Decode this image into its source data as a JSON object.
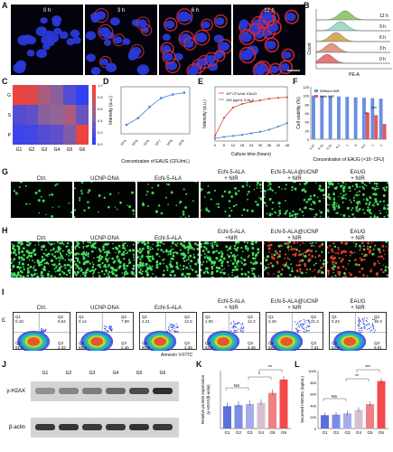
{
  "panels": {
    "A": "A",
    "B": "B",
    "C": "C",
    "D": "D",
    "E": "E",
    "F": "F",
    "G": "G",
    "H": "H",
    "I": "I",
    "J": "J",
    "K": "K",
    "L": "L"
  },
  "panelA": {
    "times": [
      "0 h",
      "3 h",
      "6 h",
      "12 h"
    ]
  },
  "panelB": {
    "times": [
      "12 h",
      "9 h",
      "6 h",
      "3 h",
      "0 h"
    ],
    "xlabel": "PE-A",
    "ylabel": "Count"
  },
  "panelC": {
    "rows": [
      "G",
      "S",
      "P"
    ],
    "cols": [
      "G1",
      "G2",
      "G3",
      "G4",
      "G5",
      "G6"
    ],
    "ticks": [
      "1.0",
      "0.8",
      "0.6",
      "0.4",
      "0.2",
      "0.0"
    ]
  },
  "panelD": {
    "ylabel": "Intensity (a.u.)",
    "xlabel": "Concentration of EAUG (CFU/mL)"
  },
  "panelE": {
    "ylabel": "Intensity (a.u.)",
    "xlabel": "Culture time (hours)",
    "legend": [
      "10⁸ CFU/mL EAUG",
      "100 μg/mL 5-ALA"
    ],
    "xticks": [
      "0",
      "6",
      "12",
      "18",
      "24",
      "30",
      "36",
      "42",
      "48"
    ]
  },
  "panelF": {
    "ylabel": "Cell viability (%)",
    "xlabel": "Concentration of EAUG (×10⁷ CFU)",
    "legend": [
      "Without NIR",
      "With NIR"
    ],
    "yticks": [
      "120",
      "100",
      "80",
      "60",
      "40",
      "20",
      "0"
    ],
    "xticks": [
      "0.47",
      "0.10",
      "0.20",
      "0.2",
      "1",
      "5",
      "0.5",
      "1",
      "2"
    ],
    "sig": [
      "***",
      "**"
    ]
  },
  "groups": [
    "Ctrl.",
    "UCNP-DNA",
    "EcN-5-ALA",
    "EcN-5-ALA\n+NIR",
    "EcN-5-ALA@UCNP\n+ NIR",
    "EAUG\n+ NIR"
  ],
  "groupsG": [
    "Ctrl.",
    "UCNP-DNA",
    "EcN-5-ALA",
    "EcN-5-ALA\n+ NIR",
    "EcN-5-ALA@UCNP\n+ NIR",
    "EAUG\n+ NIR"
  ],
  "panelI": {
    "ylabel": "PI",
    "xlabel": "Annexin V-FITC",
    "plots": [
      {
        "name": "Ctrl.",
        "q1": "0.18",
        "q2": "6.54",
        "q3": "2.32",
        "q4": "91.0"
      },
      {
        "name": "UCNP-DNA",
        "q1": "0.14",
        "q2": "7.59",
        "q3": "2.46",
        "q4": "89.8"
      },
      {
        "name": "EcN-5-ALA",
        "q1": "2.21",
        "q2": "12.6",
        "q3": "4.35",
        "q4": "80.9"
      },
      {
        "name": "EcN-5-ALA\n+ NIR",
        "q1": "1.00",
        "q2": "12.2",
        "q3": "4.46",
        "q4": "82.4"
      },
      {
        "name": "EcN-5-ALA@UCNP\n+ NIR",
        "q1": "2.40",
        "q2": "21.3",
        "q3": "7.31",
        "q4": "69.0"
      },
      {
        "name": "EAUG\n+ NIR",
        "q1": "0.24",
        "q2": "36.3",
        "q3": "9.01",
        "q4": "54.5"
      }
    ]
  },
  "panelJ": {
    "lanes": [
      "G1",
      "G2",
      "G3",
      "G4",
      "G5",
      "G6"
    ],
    "proteins": [
      "γ-H2AX",
      "β-actin"
    ]
  },
  "panelK": {
    "ylabel1": "Relative protein expression",
    "ylabel2": "(γ-H2AX/β-actin)",
    "ns": "NS",
    "sig1": "*",
    "sig2": "**"
  },
  "panelL": {
    "ylabel": "Secreted HMGB1 (ng/mL)",
    "ns": "NS",
    "sig1": "**",
    "sig2": "***",
    "yticks": [
      "1000",
      "800",
      "600",
      "400",
      "200",
      "0"
    ]
  },
  "chart_data": [
    {
      "type": "line",
      "title": "",
      "xlabel": "Concentration of EAUG (CFU/mL)",
      "ylabel": "Intensity (a.u.)",
      "x": [
        "10^4",
        "10^5",
        "10^6",
        "10^7",
        "10^8",
        "10^9"
      ],
      "series": [
        {
          "values": [
            0.2,
            0.35,
            0.6,
            0.8,
            0.88,
            0.92
          ]
        }
      ]
    },
    {
      "type": "line",
      "title": "",
      "xlabel": "Culture time (hours)",
      "ylabel": "Intensity (a.u.)",
      "x": [
        0,
        6,
        12,
        18,
        24,
        30,
        36,
        42,
        48
      ],
      "series": [
        {
          "name": "10⁸ CFU/mL EAUG",
          "values": [
            0.1,
            0.45,
            0.65,
            0.72,
            0.76,
            0.79,
            0.82,
            0.84,
            0.85
          ]
        },
        {
          "name": "100 μg/mL 5-ALA",
          "values": [
            0.05,
            0.08,
            0.1,
            0.12,
            0.15,
            0.18,
            0.22,
            0.28,
            0.35
          ]
        }
      ]
    },
    {
      "type": "bar",
      "title": "",
      "xlabel": "Concentration of EAUG (×10⁷ CFU)",
      "ylabel": "Cell viability (%)",
      "ylim": [
        0,
        120
      ],
      "categories": [
        "0.47",
        "0.10",
        "0.20",
        "0.2",
        "1",
        "5",
        "0.5",
        "1",
        "2"
      ],
      "series": [
        {
          "name": "Without NIR",
          "values": [
            100,
            99,
            98,
            98,
            97,
            96,
            95,
            94,
            93
          ]
        },
        {
          "name": "With NIR",
          "values": [
            0,
            0,
            0,
            0,
            0,
            0,
            60,
            55,
            35
          ]
        }
      ]
    },
    {
      "type": "bar",
      "title": "",
      "ylabel": "Relative protein expression (γ-H2AX/β-actin)",
      "categories": [
        "G1",
        "G2",
        "G3",
        "G4",
        "G5",
        "G6"
      ],
      "values": [
        1.0,
        1.05,
        1.1,
        1.15,
        1.6,
        2.2
      ]
    },
    {
      "type": "bar",
      "title": "",
      "ylabel": "Secreted HMGB1 (ng/mL)",
      "ylim": [
        0,
        1000
      ],
      "categories": [
        "G1",
        "G2",
        "G3",
        "G4",
        "G5",
        "G6"
      ],
      "values": [
        230,
        240,
        260,
        320,
        420,
        820
      ]
    }
  ]
}
